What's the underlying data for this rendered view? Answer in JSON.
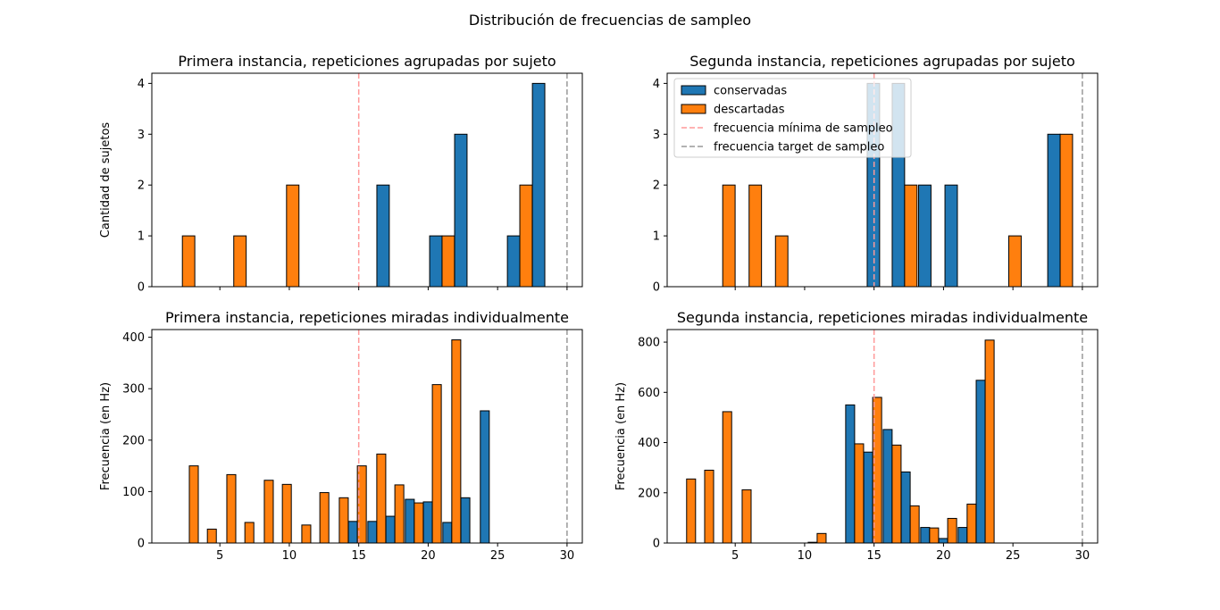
{
  "figure_title": "Distribución de frecuencias de sampleo",
  "colors": {
    "conservadas": "#1f77b4",
    "descartadas": "#ff7f0e",
    "min_line": "#ff9999",
    "target_line": "#999999"
  },
  "legend": {
    "placement": "top-left of top-right panel",
    "entries": [
      {
        "label": "conservadas",
        "kind": "patch",
        "color_key": "conservadas"
      },
      {
        "label": "descartadas",
        "kind": "patch",
        "color_key": "descartadas"
      },
      {
        "label": "frecuencia mínima de sampleo",
        "kind": "line",
        "color_key": "min_line"
      },
      {
        "label": "frecuencia target de sampleo",
        "kind": "line",
        "color_key": "target_line"
      }
    ]
  },
  "chart_data": [
    {
      "type": "bar",
      "title": "Primera instancia, repeticiones agrupadas por sujeto",
      "xlabel": "",
      "ylabel": "Cantidad de sujetos",
      "xlim": [
        0.1,
        31.1
      ],
      "ylim": [
        0,
        4.2
      ],
      "xticks": [],
      "yticks": [
        0,
        1,
        2,
        3,
        4
      ],
      "grid": false,
      "vlines": {
        "min": 15,
        "target": 30
      },
      "categories": [
        2.3,
        4.1,
        6.0,
        7.9,
        9.8,
        11.6,
        13.5,
        15.4,
        17.2,
        19.1,
        21.0,
        22.8,
        24.7,
        26.6,
        28.4
      ],
      "series": [
        {
          "name": "conservadas",
          "values": [
            0,
            0,
            0,
            0,
            0,
            0,
            0,
            0,
            2,
            0,
            1,
            3,
            0,
            1,
            4
          ]
        },
        {
          "name": "descartadas",
          "values": [
            1,
            0,
            1,
            0,
            2,
            0,
            0,
            0,
            0,
            0,
            1,
            0,
            0,
            2,
            0
          ]
        }
      ]
    },
    {
      "type": "bar",
      "title": "Segunda instancia, repeticiones agrupadas por sujeto",
      "xlabel": "",
      "ylabel": "",
      "xlim": [
        0.1,
        31.1
      ],
      "ylim": [
        0,
        4.2
      ],
      "xticks": [],
      "yticks": [
        0,
        1,
        2,
        3,
        4
      ],
      "grid": false,
      "vlines": {
        "min": 15,
        "target": 30
      },
      "categories": [
        2.3,
        4.1,
        6.0,
        7.9,
        9.8,
        11.6,
        13.5,
        15.4,
        17.2,
        19.1,
        21.0,
        22.8,
        24.7,
        26.6,
        28.4
      ],
      "series": [
        {
          "name": "conservadas",
          "values": [
            0,
            0,
            0,
            0,
            0,
            0,
            0,
            4,
            4,
            2,
            2,
            0,
            0,
            0,
            3
          ]
        },
        {
          "name": "descartadas",
          "values": [
            0,
            2,
            2,
            1,
            0,
            0,
            0,
            0,
            2,
            0,
            0,
            0,
            1,
            0,
            3
          ]
        }
      ]
    },
    {
      "type": "bar",
      "title": "Primera instancia, repeticiones miradas individualmente",
      "xlabel": "",
      "ylabel": "Frecuencia (en Hz)",
      "xlim": [
        0.1,
        31.1
      ],
      "ylim": [
        0,
        415
      ],
      "xticks": [
        5,
        10,
        15,
        20,
        25,
        30
      ],
      "yticks": [
        0,
        100,
        200,
        300,
        400
      ],
      "grid": false,
      "vlines": {
        "min": 15,
        "target": 30
      },
      "categories": [
        1.5,
        2.8,
        4.1,
        5.5,
        6.8,
        8.2,
        9.5,
        10.9,
        12.2,
        13.6,
        14.9,
        16.3,
        17.6,
        19.0,
        20.3,
        21.7,
        23.0,
        24.4,
        25.7,
        27.1,
        28.4
      ],
      "series": [
        {
          "name": "conservadas",
          "values": [
            0,
            0,
            0,
            0,
            0,
            0,
            0,
            0,
            0,
            0,
            42,
            42,
            52,
            85,
            80,
            40,
            88,
            257,
            0,
            0,
            0
          ]
        },
        {
          "name": "descartadas",
          "values": [
            0,
            150,
            27,
            133,
            40,
            122,
            114,
            35,
            98,
            88,
            150,
            173,
            113,
            78,
            308,
            395,
            0,
            0,
            0,
            0,
            0
          ]
        }
      ]
    },
    {
      "type": "bar",
      "title": "Segunda instancia, repeticiones miradas individualmente",
      "xlabel": "",
      "ylabel": "Frecuencia (en Hz)",
      "xlim": [
        0.1,
        31.1
      ],
      "ylim": [
        0,
        850
      ],
      "xticks": [
        5,
        10,
        15,
        20,
        25,
        30
      ],
      "yticks": [
        0,
        200,
        400,
        600,
        800
      ],
      "grid": false,
      "vlines": {
        "min": 15,
        "target": 30
      },
      "categories": [
        1.5,
        2.8,
        4.1,
        5.5,
        6.8,
        8.2,
        9.5,
        10.9,
        12.2,
        13.6,
        14.9,
        16.3,
        17.6,
        19.0,
        20.3,
        21.7,
        23.0,
        24.4,
        25.7,
        27.1,
        28.4
      ],
      "series": [
        {
          "name": "conservadas",
          "values": [
            0,
            0,
            0,
            0,
            0,
            0,
            0,
            3,
            0,
            550,
            362,
            452,
            283,
            62,
            18,
            62,
            648,
            0,
            0,
            0,
            0
          ]
        },
        {
          "name": "descartadas",
          "values": [
            255,
            290,
            523,
            212,
            0,
            0,
            0,
            38,
            0,
            395,
            580,
            390,
            148,
            60,
            98,
            155,
            808,
            0,
            0,
            0,
            0
          ]
        }
      ]
    }
  ]
}
